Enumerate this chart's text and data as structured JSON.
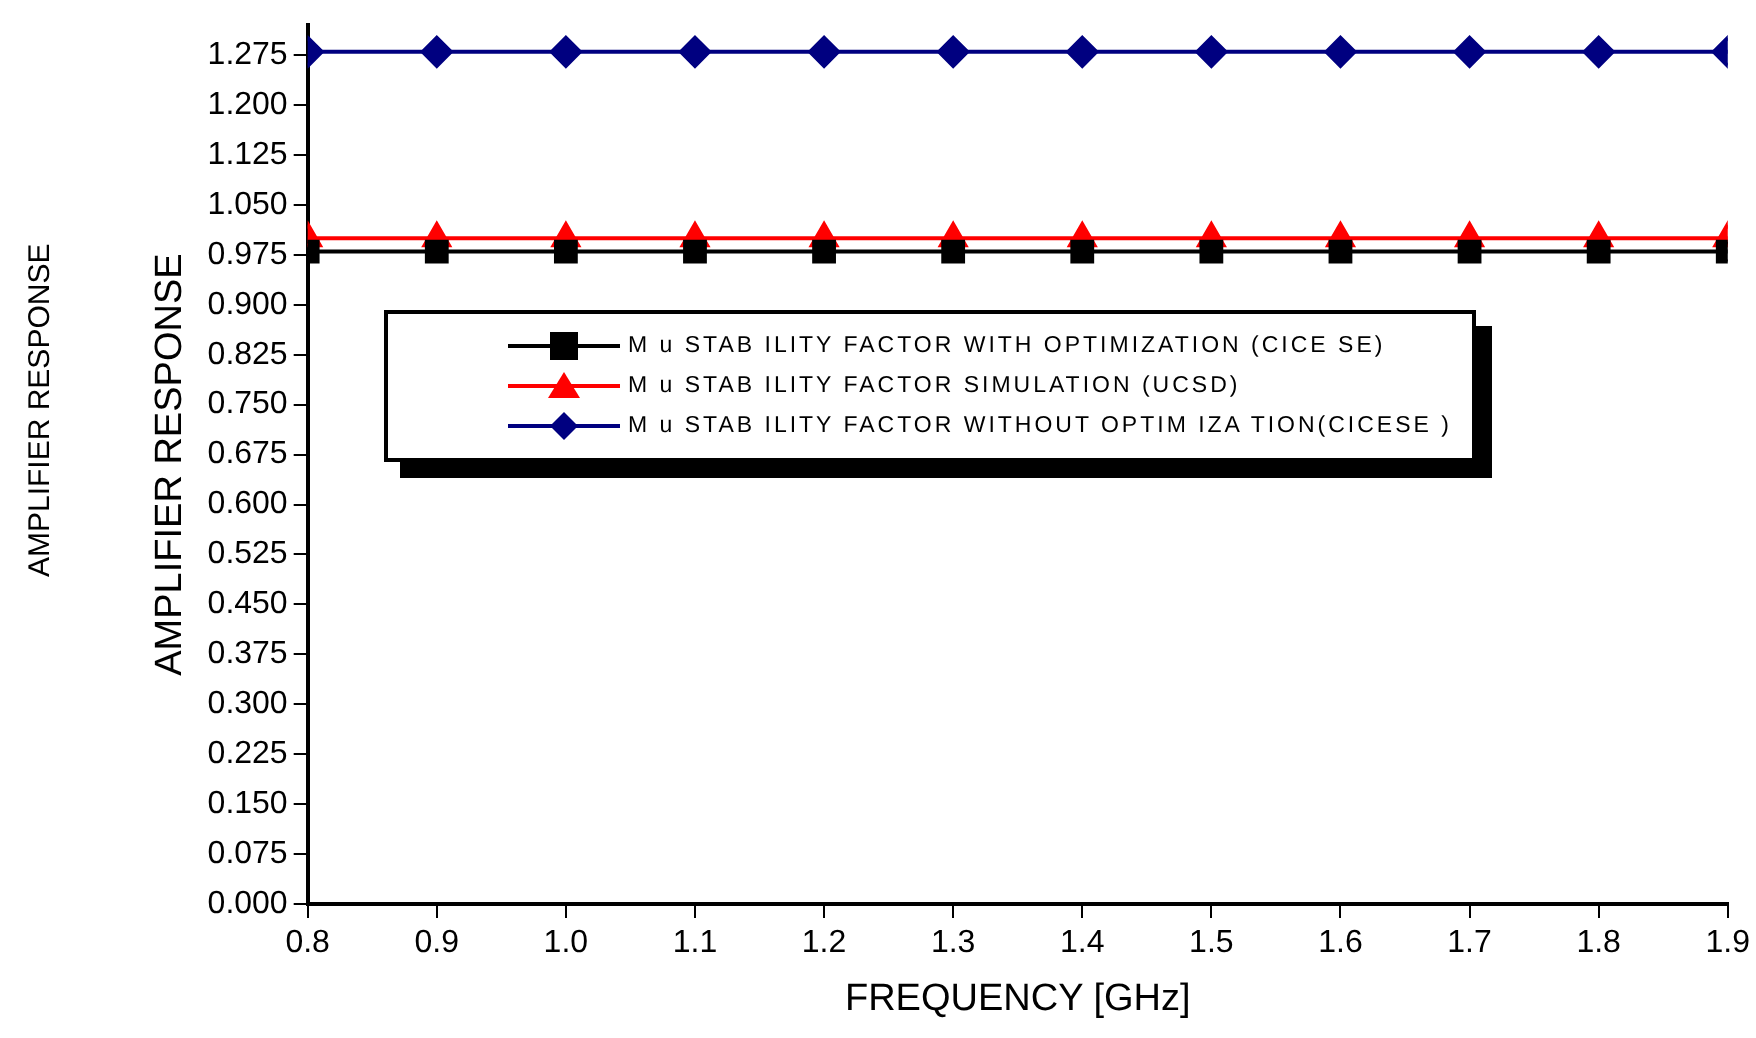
{
  "chart_data": {
    "type": "line",
    "xlabel": "FREQUENCY [GHz]",
    "ylabel": "AMPLIFIER RESPONSE",
    "annotations": [
      "AMPLIFIER RESPONSE"
    ],
    "x": [
      0.8,
      0.9,
      1.0,
      1.1,
      1.2,
      1.3,
      1.4,
      1.5,
      1.6,
      1.7,
      1.8,
      1.9
    ],
    "series": [
      {
        "name": "M u STAB ILITY FACTOR WITH OPTIMIZATION (CICE SE)",
        "color": "#000000",
        "marker": "square",
        "values": [
          0.98,
          0.98,
          0.98,
          0.98,
          0.98,
          0.98,
          0.98,
          0.98,
          0.98,
          0.98,
          0.98,
          0.98
        ]
      },
      {
        "name": "M u STAB ILITY FACTOR SIMULATION (UCSD)",
        "color": "#ff0000",
        "marker": "triangle",
        "values": [
          1.0,
          1.0,
          1.0,
          1.0,
          1.0,
          1.0,
          1.0,
          1.0,
          1.0,
          1.0,
          1.0,
          1.0
        ]
      },
      {
        "name": "M u STAB ILITY FACTOR WITHOUT OPTIM IZA TION(CICESE )",
        "color": "#000080",
        "marker": "diamond",
        "values": [
          1.28,
          1.28,
          1.28,
          1.28,
          1.28,
          1.28,
          1.28,
          1.28,
          1.28,
          1.28,
          1.28,
          1.28
        ]
      }
    ],
    "xlim": [
      0.8,
      1.9
    ],
    "xticks": [
      0.8,
      0.9,
      {
        "value": 1,
        "label": "1.0"
      },
      1.1,
      1.2,
      1.3,
      1.4,
      1.5,
      1.6,
      1.7,
      1.8,
      1.9
    ],
    "ylim": [
      0,
      1.32
    ],
    "yticks": [
      {
        "value": 0,
        "label": "0.000"
      },
      {
        "value": 0.075,
        "label": "0.075"
      },
      {
        "value": 0.15,
        "label": "0.150"
      },
      {
        "value": 0.225,
        "label": "0.225"
      },
      {
        "value": 0.3,
        "label": "0.300"
      },
      {
        "value": 0.375,
        "label": "0.375"
      },
      {
        "value": 0.45,
        "label": "0.450"
      },
      {
        "value": 0.525,
        "label": "0.525"
      },
      {
        "value": 0.6,
        "label": "0.600"
      },
      {
        "value": 0.675,
        "label": "0.675"
      },
      {
        "value": 0.75,
        "label": "0.750"
      },
      {
        "value": 0.825,
        "label": "0.825"
      },
      {
        "value": 0.9,
        "label": "0.900"
      },
      {
        "value": 0.975,
        "label": "0.975"
      },
      {
        "value": 1.05,
        "label": "1.050"
      },
      {
        "value": 1.125,
        "label": "1.125"
      },
      {
        "value": 1.2,
        "label": "1.200"
      },
      {
        "value": 1.275,
        "label": "1.275"
      }
    ],
    "grid": false,
    "legend": "top",
    "line_style": "solid"
  }
}
